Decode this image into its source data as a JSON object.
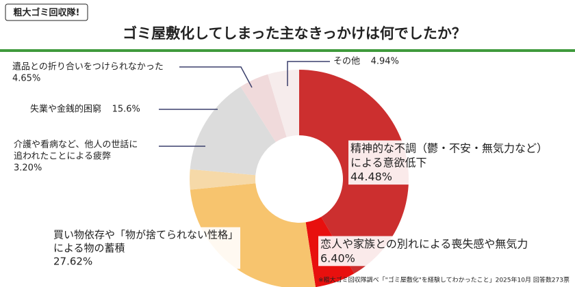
{
  "header": {
    "logo": "粗大ゴミ回収隊!"
  },
  "chart_data": {
    "type": "donut",
    "title": "ゴミ屋敷化してしまった主なきっかけは何でしたか？",
    "categories": [
      [
        "精神的な不調（鬱・不安・無気力など）",
        "による意欲低下"
      ],
      [
        "恋人や家族との別れによる喪失感や無気力"
      ],
      [
        "買い物依存や「物が捨てられない性格」",
        "による物の蓄積"
      ],
      [
        "介護や看病など、他人の世話に",
        "追われたことによる疲弊"
      ],
      [
        "失業や金銭的困窮"
      ],
      [
        "遺品との折り合いをつけられなかった"
      ],
      [
        "その他"
      ]
    ],
    "values": [
      44.48,
      6.4,
      27.62,
      3.2,
      15.6,
      4.65,
      4.94
    ],
    "value_labels": [
      "44.48%",
      "6.40%",
      "27.62%",
      "3.20%",
      "15.6%",
      "4.65%",
      "4.94%"
    ],
    "colors": [
      "#cc2f2f",
      "#e8100e",
      "#f7c46e",
      "#f6d9a8",
      "#dcdcdc",
      "#f0dadb",
      "#f6ecec"
    ],
    "note": "※粗大ゴミ回収隊調べ「\"ゴミ屋敷化\"を経験してわかったこと」2025年10月 回答数273票"
  }
}
